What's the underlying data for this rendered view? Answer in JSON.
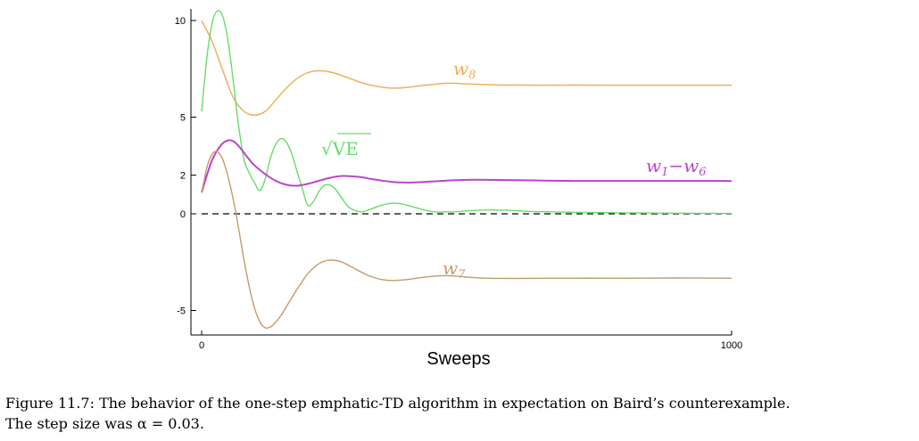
{
  "chart_data": {
    "type": "line",
    "xlabel": "Sweeps",
    "xlim": [
      0,
      1000
    ],
    "ylim": [
      -6,
      10.5
    ],
    "x_ticks": [
      "0",
      "1000"
    ],
    "y_ticks": [
      "10",
      "5",
      "2",
      "0",
      "-5"
    ],
    "y_tick_values": [
      10,
      5,
      2,
      0,
      -5
    ],
    "reference_line": {
      "y": 0,
      "style": "dashed",
      "color": "#000000"
    },
    "series": [
      {
        "name_main": "w",
        "name_sub": "8",
        "color": "#f2aa55",
        "x": [
          0,
          20,
          40,
          60,
          80,
          100,
          120,
          140,
          160,
          180,
          200,
          220,
          240,
          260,
          280,
          300,
          320,
          340,
          360,
          380,
          400,
          420,
          440,
          460,
          480,
          500,
          520,
          540,
          560,
          580,
          600,
          640,
          700,
          800,
          900,
          1000
        ],
        "y": [
          10.0,
          8.9,
          7.4,
          6.0,
          5.3,
          5.1,
          5.3,
          5.9,
          6.5,
          7.0,
          7.3,
          7.4,
          7.35,
          7.2,
          7.0,
          6.8,
          6.65,
          6.55,
          6.5,
          6.52,
          6.58,
          6.65,
          6.7,
          6.75,
          6.75,
          6.72,
          6.7,
          6.68,
          6.67,
          6.66,
          6.66,
          6.65,
          6.66,
          6.65,
          6.65,
          6.65
        ]
      },
      {
        "name_main": "√VE",
        "name_sub": "",
        "color": "#66dd66",
        "x": [
          0,
          10,
          20,
          30,
          40,
          50,
          60,
          70,
          80,
          90,
          100,
          110,
          120,
          130,
          140,
          150,
          160,
          170,
          180,
          190,
          200,
          210,
          220,
          230,
          240,
          250,
          260,
          270,
          280,
          300,
          320,
          340,
          360,
          380,
          400,
          420,
          440,
          460,
          480,
          500,
          540,
          580,
          620,
          660,
          700,
          800,
          900,
          1000
        ],
        "y": [
          5.3,
          8.1,
          9.9,
          10.5,
          10.2,
          8.9,
          6.8,
          4.5,
          2.8,
          2.1,
          1.6,
          1.2,
          1.8,
          2.9,
          3.6,
          3.9,
          3.7,
          3.1,
          2.2,
          1.3,
          0.45,
          0.6,
          1.1,
          1.45,
          1.5,
          1.35,
          1.0,
          0.6,
          0.3,
          0.1,
          0.25,
          0.45,
          0.55,
          0.5,
          0.35,
          0.2,
          0.1,
          0.1,
          0.1,
          0.15,
          0.2,
          0.18,
          0.12,
          0.1,
          0.08,
          0.05,
          0.03,
          0.02
        ]
      },
      {
        "name_main": "w",
        "name_sub": "1",
        "name_mid": "−",
        "name_main2": "w",
        "name_sub2": "6",
        "color": "#bb44cc",
        "x": [
          0,
          10,
          20,
          30,
          40,
          50,
          60,
          70,
          80,
          90,
          100,
          120,
          140,
          160,
          180,
          200,
          220,
          240,
          260,
          280,
          300,
          320,
          340,
          360,
          380,
          400,
          440,
          480,
          520,
          560,
          600,
          700,
          800,
          900,
          1000
        ],
        "y": [
          1.1,
          2.0,
          2.8,
          3.3,
          3.65,
          3.8,
          3.75,
          3.5,
          3.15,
          2.8,
          2.5,
          2.05,
          1.7,
          1.5,
          1.45,
          1.55,
          1.7,
          1.85,
          1.95,
          1.95,
          1.9,
          1.8,
          1.72,
          1.65,
          1.62,
          1.62,
          1.68,
          1.74,
          1.76,
          1.75,
          1.74,
          1.7,
          1.7,
          1.7,
          1.7
        ]
      },
      {
        "name_main": "w",
        "name_sub": "7",
        "color": "#c49a6c",
        "x": [
          0,
          10,
          20,
          30,
          40,
          50,
          60,
          70,
          80,
          90,
          100,
          110,
          120,
          130,
          140,
          150,
          160,
          170,
          180,
          190,
          200,
          220,
          240,
          260,
          280,
          300,
          320,
          340,
          360,
          380,
          400,
          420,
          440,
          460,
          480,
          500,
          540,
          600,
          700,
          800,
          900,
          1000
        ],
        "y": [
          1.1,
          2.4,
          3.1,
          3.2,
          2.8,
          1.9,
          0.7,
          -0.8,
          -2.4,
          -3.8,
          -4.9,
          -5.6,
          -5.9,
          -5.85,
          -5.6,
          -5.25,
          -4.8,
          -4.35,
          -3.9,
          -3.5,
          -3.1,
          -2.6,
          -2.4,
          -2.45,
          -2.7,
          -3.0,
          -3.25,
          -3.4,
          -3.45,
          -3.42,
          -3.35,
          -3.28,
          -3.22,
          -3.2,
          -3.22,
          -3.27,
          -3.33,
          -3.34,
          -3.33,
          -3.33,
          -3.32,
          -3.33
        ]
      }
    ]
  },
  "caption": {
    "line1": "Figure 11.7: The behavior of the one-step emphatic-TD algorithm in expectation on Baird’s counterexample.",
    "line2": "The step size was α = 0.03."
  }
}
